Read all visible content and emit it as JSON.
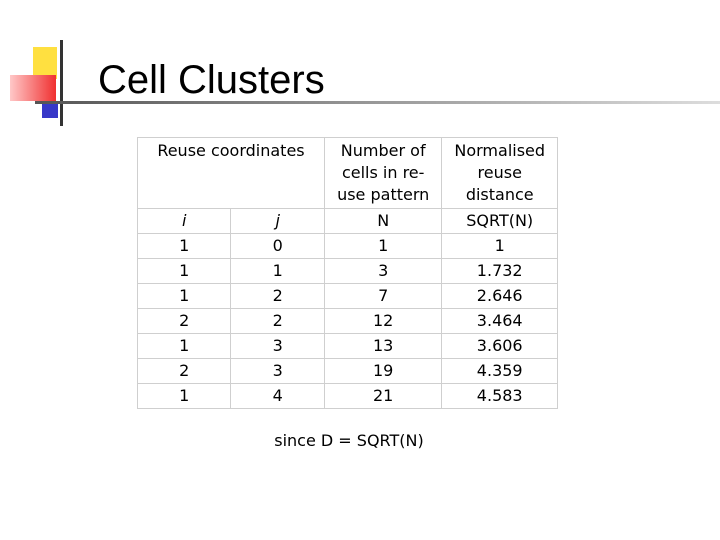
{
  "header": {
    "title": "Cell Clusters"
  },
  "table": {
    "group_headers": [
      [
        "Reuse coordinates"
      ],
      [
        "Number of",
        "cells in re-",
        "use pattern"
      ],
      [
        "Normalised",
        "reuse",
        "distance"
      ]
    ],
    "sub_headers": [
      "i",
      "j",
      "N",
      "SQRT(N)"
    ],
    "rows": [
      [
        "1",
        "0",
        "1",
        "1"
      ],
      [
        "1",
        "1",
        "3",
        "1.732"
      ],
      [
        "1",
        "2",
        "7",
        "2.646"
      ],
      [
        "2",
        "2",
        "12",
        "3.464"
      ],
      [
        "1",
        "3",
        "13",
        "3.606"
      ],
      [
        "2",
        "3",
        "19",
        "4.359"
      ],
      [
        "1",
        "4",
        "21",
        "4.583"
      ]
    ]
  },
  "caption": "since D = SQRT(N)"
}
